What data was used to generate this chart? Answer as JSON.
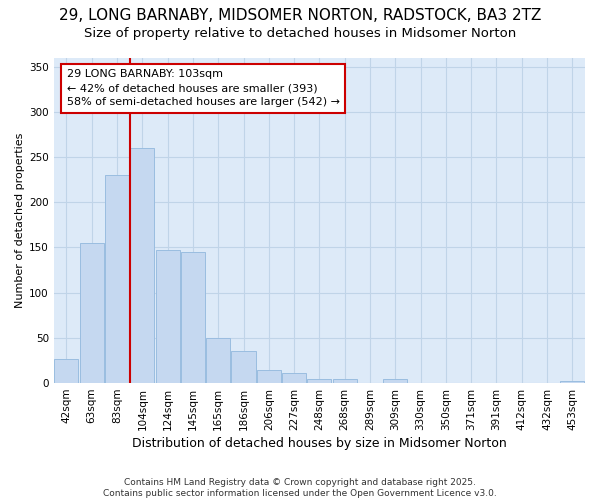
{
  "title1": "29, LONG BARNABY, MIDSOMER NORTON, RADSTOCK, BA3 2TZ",
  "title2": "Size of property relative to detached houses in Midsomer Norton",
  "xlabel": "Distribution of detached houses by size in Midsomer Norton",
  "ylabel": "Number of detached properties",
  "footer1": "Contains HM Land Registry data © Crown copyright and database right 2025.",
  "footer2": "Contains public sector information licensed under the Open Government Licence v3.0.",
  "categories": [
    "42sqm",
    "63sqm",
    "83sqm",
    "104sqm",
    "124sqm",
    "145sqm",
    "165sqm",
    "186sqm",
    "206sqm",
    "227sqm",
    "248sqm",
    "268sqm",
    "289sqm",
    "309sqm",
    "330sqm",
    "350sqm",
    "371sqm",
    "391sqm",
    "412sqm",
    "432sqm",
    "453sqm"
  ],
  "values": [
    27,
    155,
    230,
    260,
    147,
    145,
    50,
    36,
    15,
    11,
    5,
    4,
    0,
    4,
    0,
    0,
    0,
    0,
    0,
    0,
    2
  ],
  "bar_color": "#c5d8f0",
  "bar_edge_color": "#9abde0",
  "vline_color": "#cc0000",
  "annotation_text": "29 LONG BARNABY: 103sqm\n← 42% of detached houses are smaller (393)\n58% of semi-detached houses are larger (542) →",
  "annotation_box_facecolor": "#ffffff",
  "annotation_box_edgecolor": "#cc0000",
  "grid_color": "#c0d4e8",
  "bg_color": "#ddeaf8",
  "fig_bg_color": "#ffffff",
  "ylim": [
    0,
    360
  ],
  "yticks": [
    0,
    50,
    100,
    150,
    200,
    250,
    300,
    350
  ],
  "property_bar_index": 3,
  "title1_fontsize": 11,
  "title2_fontsize": 9.5,
  "xlabel_fontsize": 9,
  "ylabel_fontsize": 8,
  "tick_fontsize": 7.5,
  "annot_fontsize": 8,
  "footer_fontsize": 6.5
}
